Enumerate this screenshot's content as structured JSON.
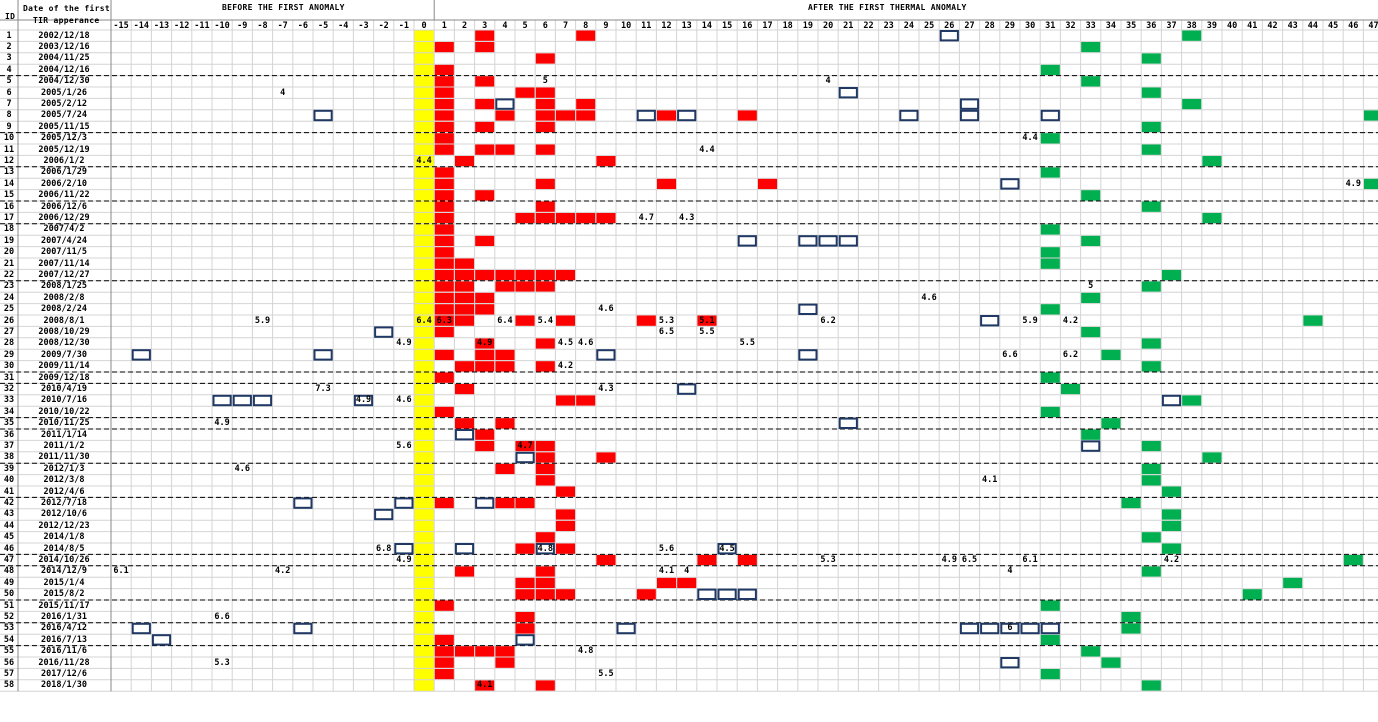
{
  "header": {
    "id_label": "ID",
    "date_label_line1": "Date of the first",
    "date_label_line2": "TIR apperance",
    "before_label": "BEFORE THE FIRST ANOMALY",
    "after_label": "AFTER THE FIRST THERMAL ANOMALY"
  },
  "day_offsets": [
    "-15",
    "-14",
    "-13",
    "-12",
    "-11",
    "-10",
    "-9",
    "-8",
    "-7",
    "-6",
    "-5",
    "-4",
    "-3",
    "-2",
    "-1",
    "0",
    "1",
    "2",
    "3",
    "4",
    "5",
    "6",
    "7",
    "8",
    "9",
    "10",
    "11",
    "12",
    "13",
    "14",
    "15",
    "16",
    "17",
    "18",
    "19",
    "20",
    "21",
    "22",
    "23",
    "24",
    "25",
    "26",
    "27",
    "28",
    "29",
    "30",
    "31",
    "32",
    "33",
    "34",
    "35",
    "36",
    "37",
    "38",
    "39",
    "40",
    "41",
    "42",
    "43",
    "44",
    "45",
    "46",
    "47"
  ],
  "dates": [
    "2002/12/18",
    "2003/12/16",
    "2004/11/25",
    "2004/12/16",
    "2004/12/30",
    "2005/1/26",
    "2005/2/12",
    "2005/7/24",
    "2005/11/15",
    "2005/12/3",
    "2005/12/19",
    "2006/1/2",
    "2006/1/29",
    "2006/2/10",
    "2006/11/22",
    "2006/12/6",
    "2006/12/29",
    "2007/4/2",
    "2007/4/24",
    "2007/11/5",
    "2007/11/14",
    "2007/12/27",
    "2008/1/25",
    "2008/2/8",
    "2008/2/24",
    "2008/8/1",
    "2008/10/29",
    "2008/12/30",
    "2009/7/30",
    "2009/11/14",
    "2009/12/18",
    "2010/4/19",
    "2010/7/16",
    "2010/10/22",
    "2010/11/25",
    "2011/1/14",
    "2011/1/2",
    "2011/11/30",
    "2012/1/3",
    "2012/3/8",
    "2012/4/6",
    "2012/7/18",
    "2012/10/6",
    "2012/12/23",
    "2014/1/8",
    "2014/8/5",
    "2014/10/26",
    "2014/12/9",
    "2015/1/4",
    "2015/8/2",
    "2015/11/17",
    "2016/1/31",
    "2016/4/12",
    "2016/7/13",
    "2016/11/6",
    "2016/11/28",
    "2017/12/6",
    "2018/1/30"
  ],
  "dividers_after_row": [
    4,
    9,
    12,
    15,
    17,
    22,
    30,
    31,
    34,
    35,
    38,
    41,
    46,
    47,
    50,
    52,
    54
  ],
  "colors": {
    "zero_column": "#ffff00",
    "red_anomaly": "#ff0000",
    "green_anomaly": "#00b050",
    "outline": "#1f3864",
    "grid": "#d4d4d4",
    "divider": "#000000"
  },
  "red_cells": [
    [
      1,
      3
    ],
    [
      1,
      8
    ],
    [
      2,
      1
    ],
    [
      2,
      3
    ],
    [
      3,
      6
    ],
    [
      4,
      1
    ],
    [
      5,
      1
    ],
    [
      5,
      3
    ],
    [
      6,
      1
    ],
    [
      6,
      5
    ],
    [
      6,
      6
    ],
    [
      7,
      1
    ],
    [
      7,
      3
    ],
    [
      7,
      6
    ],
    [
      7,
      8
    ],
    [
      8,
      1
    ],
    [
      8,
      4
    ],
    [
      8,
      6
    ],
    [
      8,
      7
    ],
    [
      8,
      8
    ],
    [
      8,
      12
    ],
    [
      8,
      16
    ],
    [
      9,
      1
    ],
    [
      9,
      3
    ],
    [
      9,
      6
    ],
    [
      10,
      1
    ],
    [
      11,
      1
    ],
    [
      11,
      3
    ],
    [
      11,
      4
    ],
    [
      11,
      6
    ],
    [
      12,
      2
    ],
    [
      12,
      9
    ],
    [
      13,
      1
    ],
    [
      14,
      1
    ],
    [
      14,
      6
    ],
    [
      14,
      12
    ],
    [
      14,
      17
    ],
    [
      15,
      1
    ],
    [
      15,
      3
    ],
    [
      16,
      1
    ],
    [
      16,
      6
    ],
    [
      17,
      1
    ],
    [
      17,
      5
    ],
    [
      17,
      6
    ],
    [
      17,
      7
    ],
    [
      17,
      8
    ],
    [
      17,
      9
    ],
    [
      18,
      1
    ],
    [
      19,
      1
    ],
    [
      19,
      3
    ],
    [
      20,
      1
    ],
    [
      21,
      1
    ],
    [
      21,
      2
    ],
    [
      22,
      1
    ],
    [
      22,
      2
    ],
    [
      22,
      3
    ],
    [
      22,
      4
    ],
    [
      22,
      5
    ],
    [
      22,
      6
    ],
    [
      22,
      7
    ],
    [
      23,
      1
    ],
    [
      23,
      2
    ],
    [
      23,
      4
    ],
    [
      23,
      5
    ],
    [
      23,
      6
    ],
    [
      24,
      1
    ],
    [
      24,
      2
    ],
    [
      24,
      3
    ],
    [
      25,
      1
    ],
    [
      25,
      2
    ],
    [
      25,
      3
    ],
    [
      26,
      1
    ],
    [
      26,
      2
    ],
    [
      26,
      5
    ],
    [
      26,
      7
    ],
    [
      26,
      11
    ],
    [
      26,
      14
    ],
    [
      27,
      1
    ],
    [
      28,
      3
    ],
    [
      28,
      6
    ],
    [
      29,
      1
    ],
    [
      29,
      3
    ],
    [
      29,
      4
    ],
    [
      30,
      2
    ],
    [
      30,
      3
    ],
    [
      30,
      4
    ],
    [
      30,
      6
    ],
    [
      31,
      1
    ],
    [
      32,
      2
    ],
    [
      33,
      7
    ],
    [
      33,
      8
    ],
    [
      34,
      1
    ],
    [
      35,
      2
    ],
    [
      35,
      4
    ],
    [
      36,
      3
    ],
    [
      37,
      3
    ],
    [
      37,
      5
    ],
    [
      37,
      6
    ],
    [
      38,
      6
    ],
    [
      38,
      9
    ],
    [
      39,
      4
    ],
    [
      39,
      6
    ],
    [
      40,
      6
    ],
    [
      41,
      7
    ],
    [
      42,
      1
    ],
    [
      42,
      4
    ],
    [
      42,
      5
    ],
    [
      43,
      7
    ],
    [
      44,
      7
    ],
    [
      45,
      6
    ],
    [
      46,
      5
    ],
    [
      46,
      7
    ],
    [
      47,
      14
    ],
    [
      47,
      16
    ],
    [
      47,
      9
    ],
    [
      48,
      2
    ],
    [
      48,
      6
    ],
    [
      49,
      5
    ],
    [
      49,
      6
    ],
    [
      49,
      12
    ],
    [
      49,
      13
    ],
    [
      50,
      5
    ],
    [
      50,
      6
    ],
    [
      50,
      7
    ],
    [
      50,
      11
    ],
    [
      51,
      1
    ],
    [
      52,
      5
    ],
    [
      53,
      5
    ],
    [
      54,
      1
    ],
    [
      55,
      1
    ],
    [
      55,
      2
    ],
    [
      55,
      3
    ],
    [
      55,
      4
    ],
    [
      56,
      1
    ],
    [
      56,
      4
    ],
    [
      57,
      1
    ],
    [
      58,
      3
    ],
    [
      58,
      6
    ]
  ],
  "green_cells": [
    [
      1,
      38
    ],
    [
      2,
      33
    ],
    [
      3,
      36
    ],
    [
      4,
      31
    ],
    [
      5,
      33
    ],
    [
      6,
      36
    ],
    [
      7,
      38
    ],
    [
      8,
      47
    ],
    [
      9,
      36
    ],
    [
      10,
      31
    ],
    [
      11,
      36
    ],
    [
      12,
      39
    ],
    [
      13,
      31
    ],
    [
      14,
      47
    ],
    [
      15,
      33
    ],
    [
      16,
      36
    ],
    [
      17,
      39
    ],
    [
      18,
      31
    ],
    [
      19,
      33
    ],
    [
      20,
      31
    ],
    [
      21,
      31
    ],
    [
      22,
      37
    ],
    [
      23,
      36
    ],
    [
      24,
      33
    ],
    [
      25,
      31
    ],
    [
      26,
      44
    ],
    [
      27,
      33
    ],
    [
      28,
      36
    ],
    [
      29,
      34
    ],
    [
      30,
      36
    ],
    [
      31,
      31
    ],
    [
      32,
      32
    ],
    [
      33,
      38
    ],
    [
      34,
      31
    ],
    [
      35,
      34
    ],
    [
      36,
      33
    ],
    [
      37,
      36
    ],
    [
      38,
      39
    ],
    [
      39,
      36
    ],
    [
      40,
      36
    ],
    [
      41,
      37
    ],
    [
      42,
      35
    ],
    [
      43,
      37
    ],
    [
      44,
      37
    ],
    [
      45,
      36
    ],
    [
      46,
      37
    ],
    [
      47,
      46
    ],
    [
      48,
      36
    ],
    [
      49,
      43
    ],
    [
      50,
      41
    ],
    [
      51,
      31
    ],
    [
      52,
      35
    ],
    [
      53,
      35
    ],
    [
      54,
      31
    ],
    [
      55,
      33
    ],
    [
      56,
      34
    ],
    [
      57,
      31
    ],
    [
      58,
      36
    ]
  ],
  "outline_cells": [
    [
      1,
      26
    ],
    [
      6,
      21
    ],
    [
      7,
      4
    ],
    [
      7,
      27
    ],
    [
      8,
      -5
    ],
    [
      8,
      11
    ],
    [
      8,
      13
    ],
    [
      8,
      24
    ],
    [
      8,
      27
    ],
    [
      8,
      31
    ],
    [
      14,
      29
    ],
    [
      19,
      16
    ],
    [
      19,
      19
    ],
    [
      19,
      20
    ],
    [
      19,
      21
    ],
    [
      25,
      19
    ],
    [
      26,
      28
    ],
    [
      27,
      -2
    ],
    [
      29,
      -14
    ],
    [
      29,
      -5
    ],
    [
      29,
      9
    ],
    [
      29,
      19
    ],
    [
      32,
      13
    ],
    [
      33,
      -10
    ],
    [
      33,
      -9
    ],
    [
      33,
      -8
    ],
    [
      33,
      -3
    ],
    [
      33,
      37
    ],
    [
      35,
      21
    ],
    [
      36,
      2
    ],
    [
      37,
      33
    ],
    [
      38,
      5
    ],
    [
      42,
      -6
    ],
    [
      42,
      -1
    ],
    [
      42,
      3
    ],
    [
      43,
      -2
    ],
    [
      46,
      -1
    ],
    [
      46,
      2
    ],
    [
      46,
      6
    ],
    [
      46,
      15
    ],
    [
      50,
      14
    ],
    [
      50,
      15
    ],
    [
      50,
      16
    ],
    [
      53,
      -14
    ],
    [
      53,
      -6
    ],
    [
      53,
      10
    ],
    [
      53,
      27
    ],
    [
      53,
      28
    ],
    [
      53,
      29
    ],
    [
      53,
      30
    ],
    [
      53,
      31
    ],
    [
      54,
      -13
    ],
    [
      54,
      5
    ],
    [
      56,
      29
    ]
  ],
  "annotations": [
    {
      "row": 5,
      "col": 6,
      "text": "5"
    },
    {
      "row": 5,
      "col": 20,
      "text": "4"
    },
    {
      "row": 6,
      "col": -7,
      "text": "4"
    },
    {
      "row": 10,
      "col": 30,
      "text": "4.4"
    },
    {
      "row": 11,
      "col": 14,
      "text": "4.4"
    },
    {
      "row": 12,
      "col": 0,
      "text": "4.4"
    },
    {
      "row": 14,
      "col": 46,
      "text": "4.9"
    },
    {
      "row": 17,
      "col": 11,
      "text": "4.7"
    },
    {
      "row": 17,
      "col": 13,
      "text": "4.3"
    },
    {
      "row": 23,
      "col": 33,
      "text": "5"
    },
    {
      "row": 24,
      "col": 25,
      "text": "4.6"
    },
    {
      "row": 25,
      "col": 9,
      "text": "4.6"
    },
    {
      "row": 26,
      "col": -8,
      "text": "5.9"
    },
    {
      "row": 26,
      "col": 0,
      "text": "6.4"
    },
    {
      "row": 26,
      "col": 1,
      "text": "6.3"
    },
    {
      "row": 26,
      "col": 4,
      "text": "6.4"
    },
    {
      "row": 26,
      "col": 6,
      "text": "5.4"
    },
    {
      "row": 26,
      "col": 12,
      "text": "5.3"
    },
    {
      "row": 26,
      "col": 14,
      "text": "5.1"
    },
    {
      "row": 26,
      "col": 20,
      "text": "6.2"
    },
    {
      "row": 26,
      "col": 30,
      "text": "5.9"
    },
    {
      "row": 26,
      "col": 32,
      "text": "4.2"
    },
    {
      "row": 27,
      "col": 12,
      "text": "6.5"
    },
    {
      "row": 27,
      "col": 14,
      "text": "5.5"
    },
    {
      "row": 28,
      "col": -1,
      "text": "4.9"
    },
    {
      "row": 28,
      "col": 3,
      "text": "4.9"
    },
    {
      "row": 28,
      "col": 7,
      "text": "4.5"
    },
    {
      "row": 28,
      "col": 8,
      "text": "4.6"
    },
    {
      "row": 28,
      "col": 16,
      "text": "5.5"
    },
    {
      "row": 29,
      "col": 29,
      "text": "6.6"
    },
    {
      "row": 29,
      "col": 32,
      "text": "6.2"
    },
    {
      "row": 30,
      "col": 7,
      "text": "4.2"
    },
    {
      "row": 32,
      "col": -5,
      "text": "7.3"
    },
    {
      "row": 32,
      "col": 9,
      "text": "4.3"
    },
    {
      "row": 33,
      "col": -3,
      "text": "4.9"
    },
    {
      "row": 33,
      "col": -1,
      "text": "4.6"
    },
    {
      "row": 35,
      "col": -10,
      "text": "4.9"
    },
    {
      "row": 37,
      "col": -1,
      "text": "5.6"
    },
    {
      "row": 37,
      "col": 5,
      "text": "4.7"
    },
    {
      "row": 39,
      "col": -9,
      "text": "4.6"
    },
    {
      "row": 40,
      "col": 28,
      "text": "4.1"
    },
    {
      "row": 46,
      "col": -2,
      "text": "6.8"
    },
    {
      "row": 46,
      "col": 6,
      "text": "4.8"
    },
    {
      "row": 46,
      "col": 12,
      "text": "5.6"
    },
    {
      "row": 46,
      "col": 15,
      "text": "4.5"
    },
    {
      "row": 47,
      "col": -1,
      "text": "4.9"
    },
    {
      "row": 47,
      "col": 20,
      "text": "5.3"
    },
    {
      "row": 47,
      "col": 26,
      "text": "4.9"
    },
    {
      "row": 47,
      "col": 27,
      "text": "6.5"
    },
    {
      "row": 47,
      "col": 30,
      "text": "6.1"
    },
    {
      "row": 47,
      "col": 37,
      "text": "4.2"
    },
    {
      "row": 48,
      "col": -15,
      "text": "6.1"
    },
    {
      "row": 48,
      "col": -7,
      "text": "4.2"
    },
    {
      "row": 48,
      "col": 12,
      "text": "4.1"
    },
    {
      "row": 48,
      "col": 13,
      "text": "4"
    },
    {
      "row": 48,
      "col": 29,
      "text": "4"
    },
    {
      "row": 52,
      "col": -10,
      "text": "6.6"
    },
    {
      "row": 53,
      "col": 29,
      "text": "6"
    },
    {
      "row": 55,
      "col": 8,
      "text": "4.8"
    },
    {
      "row": 56,
      "col": -10,
      "text": "5.3"
    },
    {
      "row": 57,
      "col": 9,
      "text": "5.5"
    },
    {
      "row": 58,
      "col": 3,
      "text": "4.1"
    }
  ]
}
